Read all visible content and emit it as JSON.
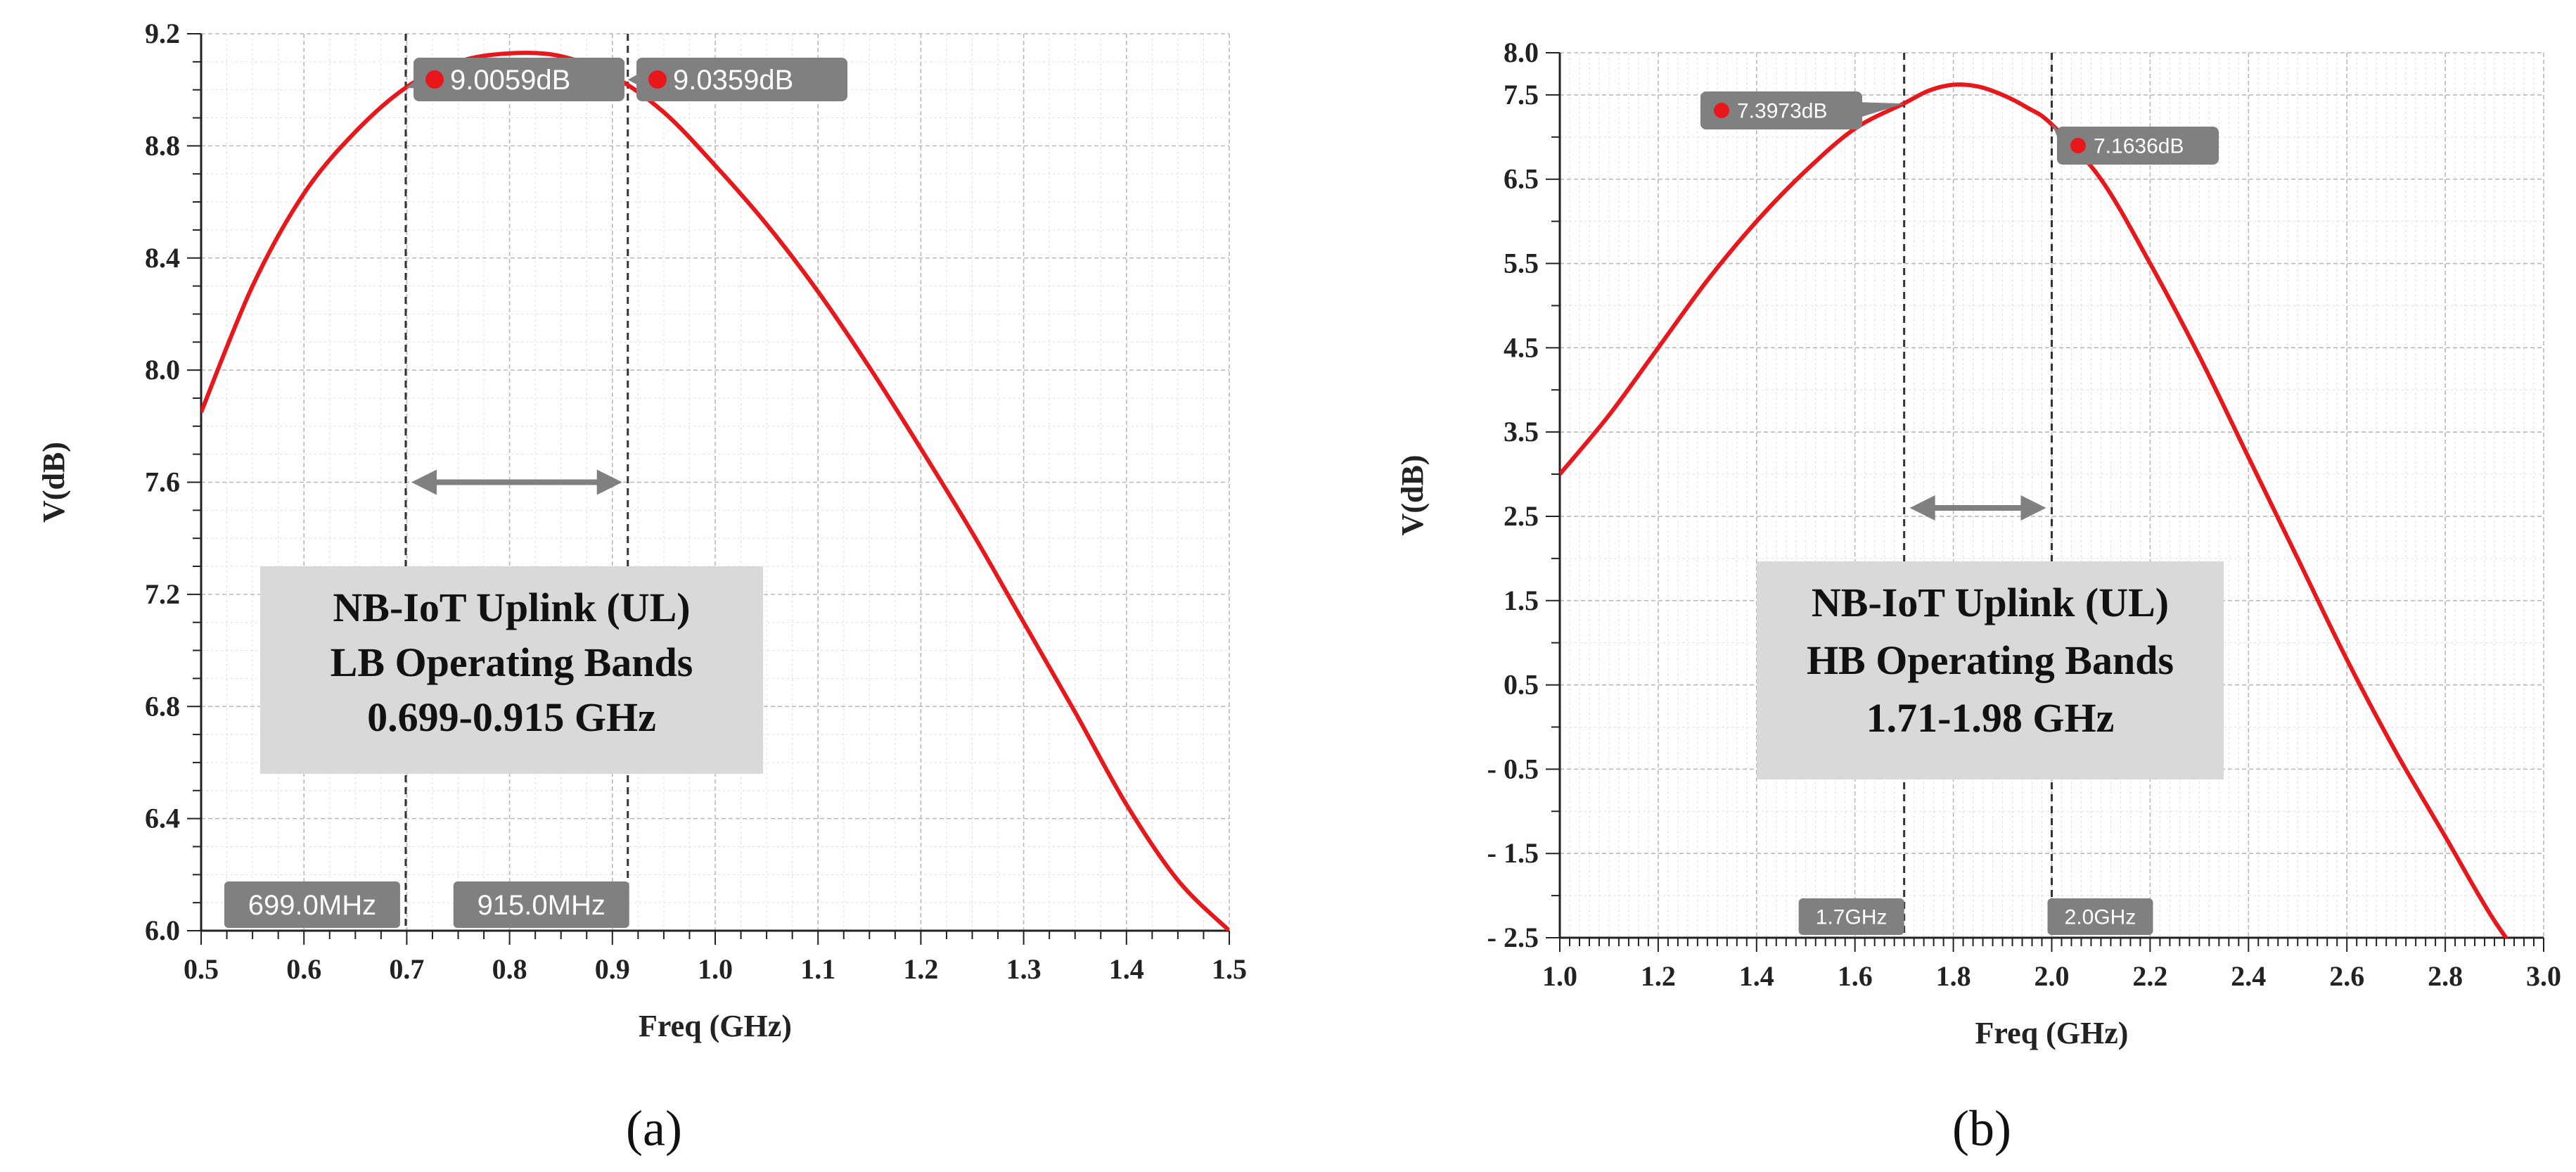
{
  "chart_data": [
    {
      "type": "line",
      "caption": "(a)",
      "xlabel": "Freq (GHz)",
      "ylabel": "V(dB)",
      "xlim": [
        0.5,
        1.5
      ],
      "ylim": [
        6.0,
        9.2
      ],
      "x_ticks": [
        "0.5",
        "0.6",
        "0.7",
        "0.8",
        "0.9",
        "1.0",
        "1.1",
        "1.2",
        "1.3",
        "1.4",
        "1.5"
      ],
      "y_ticks": [
        "6.0",
        "6.4",
        "6.8",
        "7.2",
        "7.6",
        "8.0",
        "8.4",
        "8.8",
        "9.2"
      ],
      "grid": true,
      "series": [
        {
          "color": "#e8171b",
          "x": [
            0.5,
            0.55,
            0.6,
            0.65,
            0.7,
            0.75,
            0.8,
            0.85,
            0.9,
            0.95,
            1.0,
            1.05,
            1.1,
            1.15,
            1.2,
            1.25,
            1.3,
            1.35,
            1.4,
            1.45,
            1.5
          ],
          "y": [
            7.85,
            8.3,
            8.63,
            8.85,
            9.01,
            9.1,
            9.13,
            9.12,
            9.05,
            8.92,
            8.73,
            8.52,
            8.28,
            8.01,
            7.72,
            7.42,
            7.1,
            6.78,
            6.45,
            6.18,
            6.0
          ]
        }
      ],
      "vlines": [
        {
          "x": 0.699,
          "label": "699.0MHz"
        },
        {
          "x": 0.915,
          "label": "915.0MHz"
        }
      ],
      "markers": [
        {
          "x": 0.699,
          "y": 9.0059,
          "label": "9.0059dB"
        },
        {
          "x": 0.915,
          "y": 9.0359,
          "label": "9.0359dB"
        }
      ],
      "arrow": {
        "x1": 0.699,
        "x2": 0.915,
        "y": 7.6
      },
      "annotation_box": [
        "NB-IoT Uplink (UL)",
        "LB Operating Bands",
        "0.699-0.915 GHz"
      ]
    },
    {
      "type": "line",
      "caption": "(b)",
      "xlabel": "Freq (GHz)",
      "ylabel": "V(dB)",
      "xlim": [
        1.0,
        3.0
      ],
      "ylim": [
        -2.5,
        8.0
      ],
      "x_ticks": [
        "1.0",
        "1.2",
        "1.4",
        "1.6",
        "1.8",
        "2.0",
        "2.2",
        "2.4",
        "2.6",
        "2.8",
        "3.0"
      ],
      "y_ticks": [
        "8.0",
        "7.5",
        "6.5",
        "5.5",
        "4.5",
        "3.5",
        "2.5",
        "1.5",
        "0.5",
        "- 0.5",
        "- 1.5",
        "- 2.5"
      ],
      "y_tick_values": [
        8.0,
        7.5,
        6.5,
        5.5,
        4.5,
        3.5,
        2.5,
        1.5,
        0.5,
        -0.5,
        -1.5,
        -2.5
      ],
      "grid": true,
      "series": [
        {
          "color": "#e8171b",
          "x": [
            1.0,
            1.1,
            1.2,
            1.3,
            1.4,
            1.5,
            1.6,
            1.7,
            1.75,
            1.8,
            1.85,
            1.9,
            1.95,
            2.0,
            2.1,
            2.2,
            2.3,
            2.4,
            2.5,
            2.6,
            2.7,
            2.8,
            2.9,
            3.0
          ],
          "y": [
            3.0,
            3.7,
            4.5,
            5.3,
            6.0,
            6.6,
            7.1,
            7.4,
            7.55,
            7.62,
            7.6,
            7.5,
            7.35,
            7.15,
            6.5,
            5.5,
            4.4,
            3.2,
            2.0,
            0.8,
            -0.3,
            -1.3,
            -2.3,
            -3.1
          ]
        }
      ],
      "vlines": [
        {
          "x": 1.7,
          "label": "1.7GHz"
        },
        {
          "x": 2.0,
          "label": "2.0GHz"
        }
      ],
      "markers": [
        {
          "x": 1.7,
          "y": 7.3973,
          "label": "7.3973dB"
        },
        {
          "x": 2.0,
          "y": 7.1636,
          "label": "7.1636dB"
        }
      ],
      "arrow": {
        "x1": 1.7,
        "x2": 2.0,
        "y": 2.6
      },
      "annotation_box": [
        "NB-IoT Uplink (UL)",
        "HB Operating Bands",
        "1.71-1.98 GHz"
      ]
    }
  ],
  "colors": {
    "curve": "#e8171b",
    "grid_major": "#b9b9b9",
    "grid_minor": "#dedede",
    "marker_badge": "#808080",
    "annotation_box": "#d9d9d9",
    "arrow": "#808080"
  }
}
